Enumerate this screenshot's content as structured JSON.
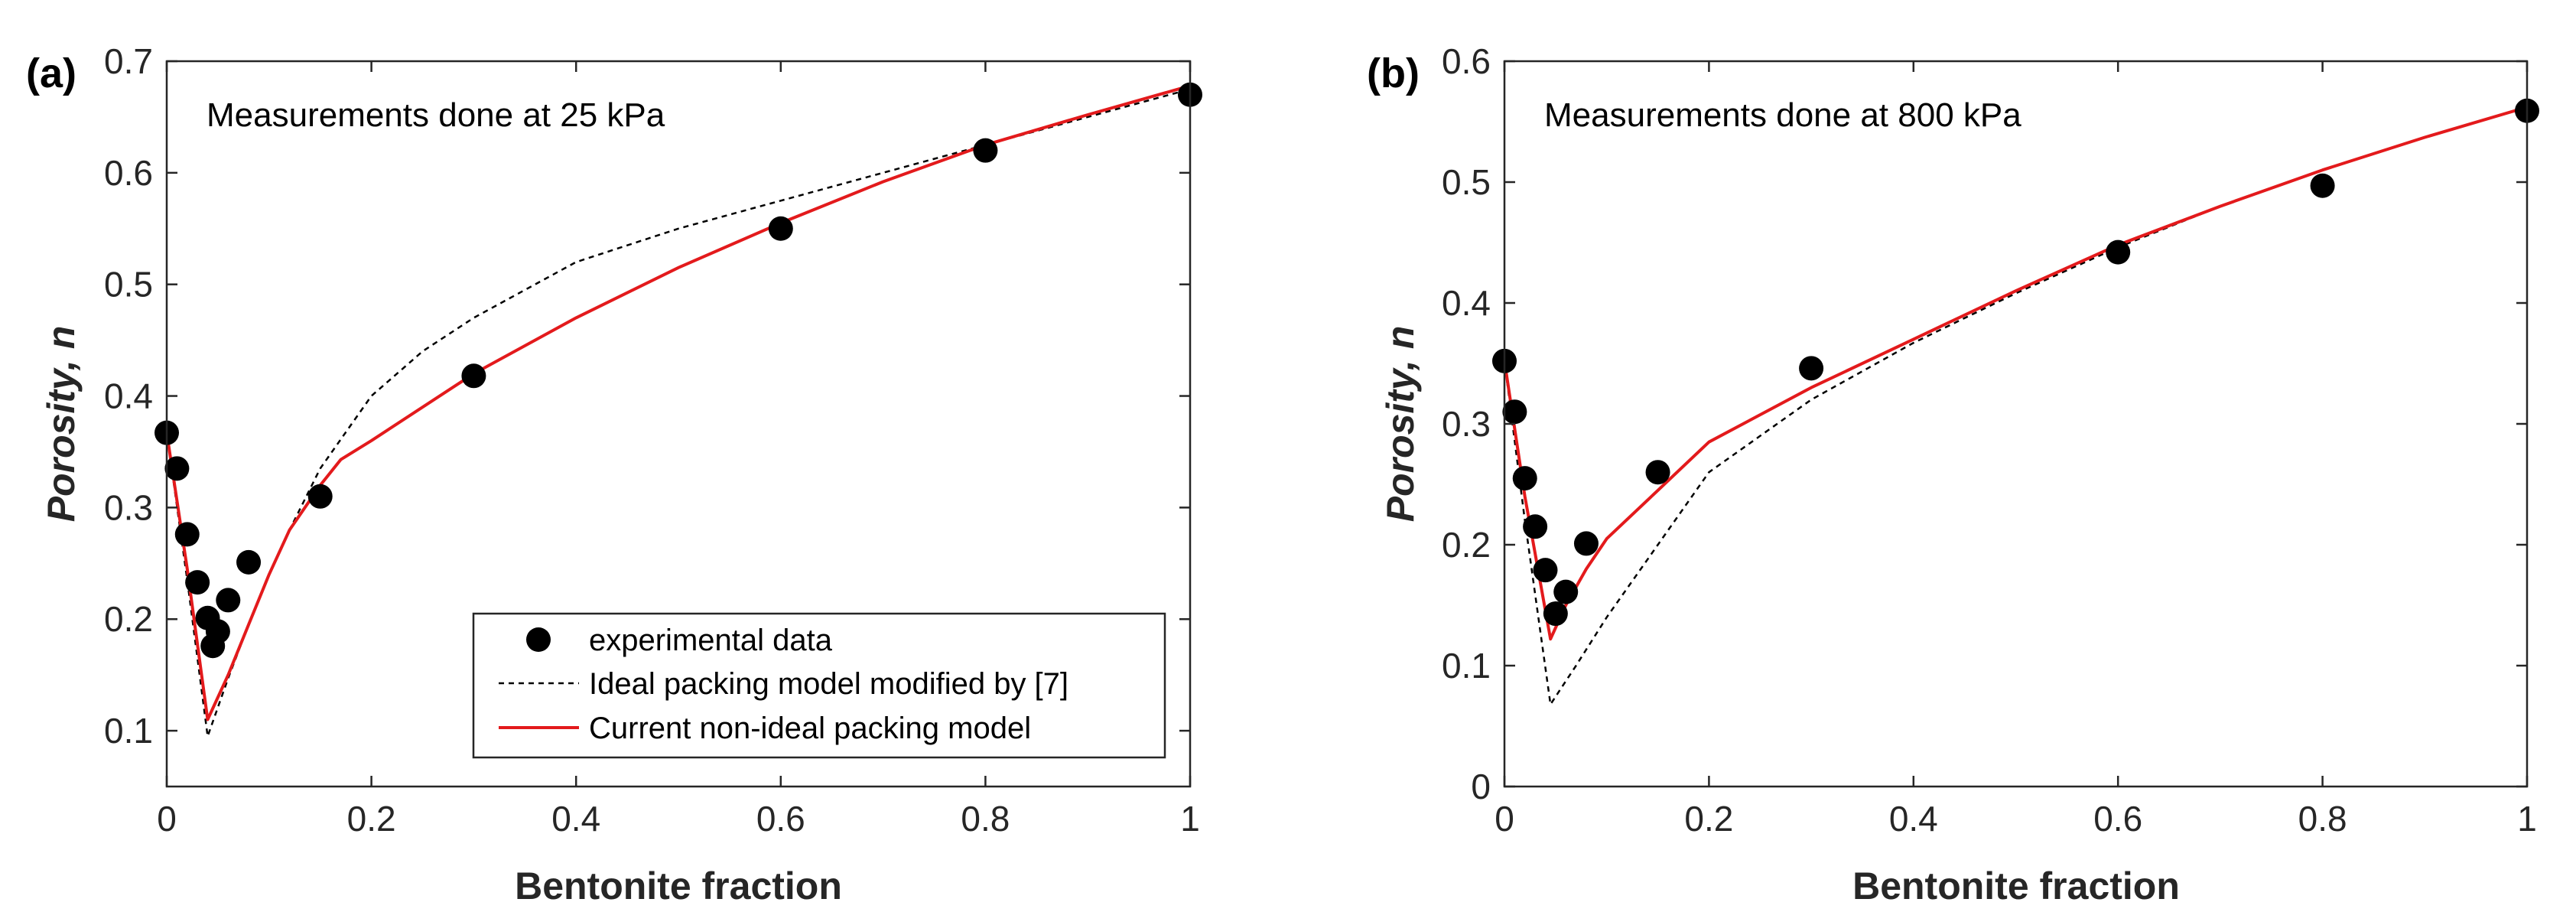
{
  "chart_data": [
    {
      "type": "scatter",
      "panel_label": "(a)",
      "annotation": "Measurements done at 25 kPa",
      "xlabel": "Bentonite fraction",
      "ylabel_main": "Porosity, ",
      "ylabel_var": "n",
      "xlim": [
        0,
        1
      ],
      "ylim": [
        0.05,
        0.7
      ],
      "xticks": [
        0,
        0.2,
        0.4,
        0.6,
        0.8,
        1
      ],
      "xtick_labels": [
        "0",
        "0.2",
        "0.4",
        "0.6",
        "0.8",
        "1"
      ],
      "yticks": [
        0.1,
        0.2,
        0.3,
        0.4,
        0.5,
        0.6,
        0.7
      ],
      "ytick_labels": [
        "0.1",
        "0.2",
        "0.3",
        "0.4",
        "0.5",
        "0.6",
        "0.7"
      ],
      "legend": {
        "placement": "bottom-right",
        "entries": [
          "experimental data",
          "Ideal packing model modified by [7]",
          "Current non-ideal packing model"
        ]
      },
      "series": [
        {
          "name": "experimental data",
          "kind": "markers",
          "color": "#000000",
          "x": [
            0,
            0.01,
            0.02,
            0.03,
            0.04,
            0.045,
            0.05,
            0.06,
            0.08,
            0.15,
            0.3,
            0.6,
            0.8,
            1
          ],
          "y": [
            0.367,
            0.335,
            0.276,
            0.233,
            0.201,
            0.176,
            0.189,
            0.217,
            0.251,
            0.31,
            0.418,
            0.55,
            0.62,
            0.67
          ]
        },
        {
          "name": "Ideal packing model modified by [7]",
          "kind": "dashed",
          "color": "#000000",
          "x": [
            0,
            0.02,
            0.04,
            0.06,
            0.08,
            0.1,
            0.12,
            0.15,
            0.2,
            0.25,
            0.3,
            0.4,
            0.5,
            0.6,
            0.7,
            0.8,
            0.9,
            1
          ],
          "y": [
            0.367,
            0.235,
            0.095,
            0.147,
            0.195,
            0.24,
            0.28,
            0.335,
            0.4,
            0.44,
            0.47,
            0.52,
            0.55,
            0.575,
            0.6,
            0.625,
            0.65,
            0.675
          ]
        },
        {
          "name": "Current non-ideal packing model",
          "kind": "solid",
          "color": "#e31a1c",
          "x": [
            0,
            0.02,
            0.04,
            0.06,
            0.08,
            0.1,
            0.12,
            0.15,
            0.17,
            0.2,
            0.3,
            0.4,
            0.5,
            0.6,
            0.7,
            0.8,
            0.9,
            1
          ],
          "y": [
            0.367,
            0.245,
            0.11,
            0.15,
            0.195,
            0.24,
            0.28,
            0.32,
            0.343,
            0.36,
            0.42,
            0.47,
            0.515,
            0.555,
            0.592,
            0.625,
            0.652,
            0.678
          ]
        }
      ]
    },
    {
      "type": "scatter",
      "panel_label": "(b)",
      "annotation": "Measurements done at 800 kPa",
      "xlabel": "Bentonite fraction",
      "ylabel_main": "Porosity, ",
      "ylabel_var": "n",
      "xlim": [
        0,
        1
      ],
      "ylim": [
        0,
        0.6
      ],
      "xticks": [
        0,
        0.2,
        0.4,
        0.6,
        0.8,
        1
      ],
      "xtick_labels": [
        "0",
        "0.2",
        "0.4",
        "0.6",
        "0.8",
        "1"
      ],
      "yticks": [
        0,
        0.1,
        0.2,
        0.3,
        0.4,
        0.5,
        0.6
      ],
      "ytick_labels": [
        "0",
        "0.1",
        "0.2",
        "0.3",
        "0.4",
        "0.5",
        "0.6"
      ],
      "series": [
        {
          "name": "experimental data",
          "kind": "markers",
          "color": "#000000",
          "x": [
            0,
            0.01,
            0.02,
            0.03,
            0.04,
            0.05,
            0.06,
            0.08,
            0.15,
            0.3,
            0.6,
            0.8,
            1
          ],
          "y": [
            0.352,
            0.31,
            0.255,
            0.215,
            0.179,
            0.143,
            0.161,
            0.201,
            0.26,
            0.346,
            0.442,
            0.497,
            0.559
          ]
        },
        {
          "name": "Ideal packing model modified by [7]",
          "kind": "dashed",
          "color": "#000000",
          "x": [
            0,
            0.02,
            0.045,
            0.07,
            0.1,
            0.15,
            0.2,
            0.3,
            0.4,
            0.5,
            0.6,
            0.7,
            0.8,
            0.9,
            1
          ],
          "y": [
            0.352,
            0.22,
            0.068,
            0.1,
            0.14,
            0.2,
            0.26,
            0.32,
            0.367,
            0.408,
            0.446,
            0.48,
            0.51,
            0.537,
            0.562
          ]
        },
        {
          "name": "Current non-ideal packing model",
          "kind": "solid",
          "color": "#e31a1c",
          "x": [
            0,
            0.02,
            0.045,
            0.06,
            0.08,
            0.1,
            0.15,
            0.2,
            0.3,
            0.4,
            0.5,
            0.6,
            0.7,
            0.8,
            0.9,
            1
          ],
          "y": [
            0.352,
            0.24,
            0.122,
            0.15,
            0.18,
            0.205,
            0.245,
            0.285,
            0.33,
            0.37,
            0.41,
            0.448,
            0.48,
            0.51,
            0.537,
            0.562
          ]
        }
      ]
    }
  ]
}
